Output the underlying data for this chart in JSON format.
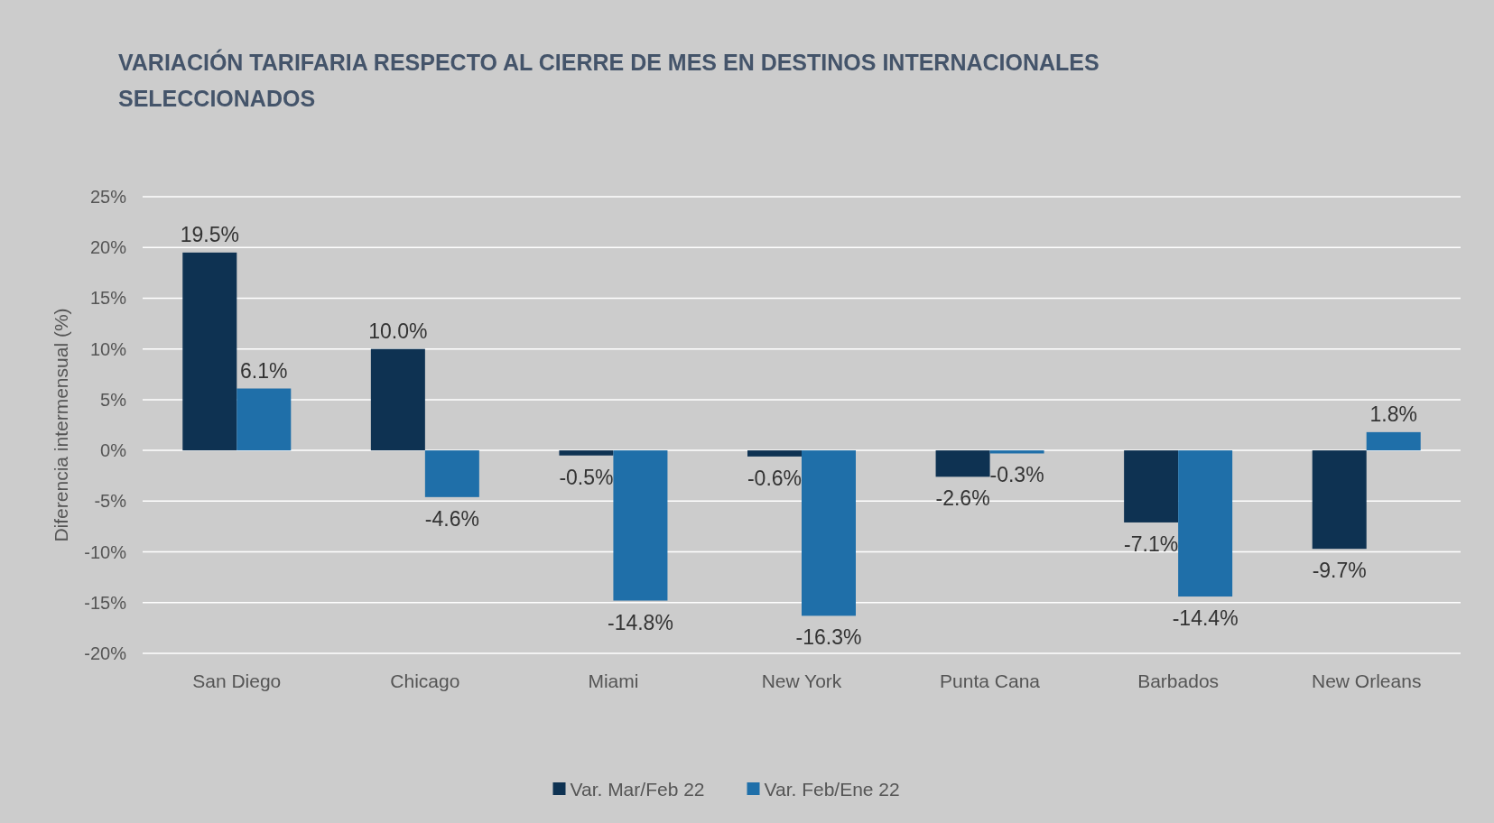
{
  "chart_data": {
    "type": "bar",
    "title": "VARIACIÓN TARIFARIA RESPECTO AL CIERRE DE MES EN DESTINOS INTERNACIONALES SELECCIONADOS",
    "ylabel": "Diferencia intermensual (%)",
    "categories": [
      "San Diego",
      "Chicago",
      "Miami",
      "New York",
      "Punta Cana",
      "Barbados",
      "New Orleans"
    ],
    "series": [
      {
        "name": "Var. Mar/Feb 22",
        "color": "#0e3252",
        "values": [
          19.5,
          10.0,
          -0.5,
          -0.6,
          -2.6,
          -7.1,
          -9.7
        ],
        "value_labels": [
          "19.5%",
          "10.0%",
          "-0.5%",
          "-0.6%",
          "-2.6%",
          "-7.1%",
          "-9.7%"
        ]
      },
      {
        "name": "Var. Feb/Ene 22",
        "color": "#1f6fa9",
        "values": [
          6.1,
          -4.6,
          -14.8,
          -16.3,
          -0.3,
          -14.4,
          1.8
        ],
        "value_labels": [
          "6.1%",
          "-4.6%",
          "-14.8%",
          "-16.3%",
          "-0.3%",
          "-14.4%",
          "1.8%"
        ]
      }
    ],
    "ylim": [
      -20,
      25
    ],
    "yticks": [
      {
        "value": -20,
        "label": "-20%"
      },
      {
        "value": -15,
        "label": "-15%"
      },
      {
        "value": -10,
        "label": "-10%"
      },
      {
        "value": -5,
        "label": "-5%"
      },
      {
        "value": 0,
        "label": "0%"
      },
      {
        "value": 5,
        "label": "5%"
      },
      {
        "value": 10,
        "label": "10%"
      },
      {
        "value": 15,
        "label": "15%"
      },
      {
        "value": 20,
        "label": "20%"
      },
      {
        "value": 25,
        "label": "25%"
      }
    ],
    "grid": "y",
    "legend": "bottom"
  }
}
